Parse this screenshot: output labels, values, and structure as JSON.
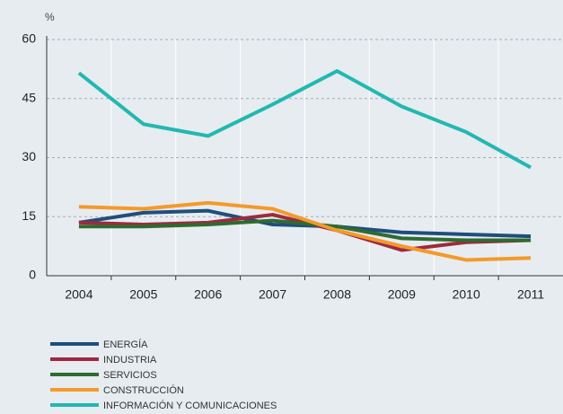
{
  "chart_data": {
    "type": "line",
    "y_label": "%",
    "categories": [
      "2004",
      "2005",
      "2006",
      "2007",
      "2008",
      "2009",
      "2010",
      "2011"
    ],
    "ylim": [
      0,
      60
    ],
    "yticks": [
      0,
      15,
      30,
      45,
      60
    ],
    "grid": true,
    "legend": "bottom-left",
    "series": [
      {
        "name": "ENERGÍA",
        "color": "#1f4e7c",
        "values": [
          13.5,
          16,
          16.5,
          13,
          12.5,
          11,
          10.5,
          10
        ]
      },
      {
        "name": "INDUSTRIA",
        "color": "#9e2a3e",
        "values": [
          13.5,
          13,
          13.5,
          15.5,
          11.5,
          6.5,
          8.5,
          9
        ]
      },
      {
        "name": "SERVICIOS",
        "color": "#2e6b30",
        "values": [
          12.5,
          12.5,
          13,
          14,
          12.5,
          9.5,
          9,
          9
        ]
      },
      {
        "name": "CONSTRUCCIÓN",
        "color": "#f39a2a",
        "values": [
          17.5,
          17,
          18.5,
          17,
          11.5,
          7.5,
          4,
          4.5
        ]
      },
      {
        "name": "INFORMACIÓN Y COMUNICACIONES",
        "color": "#22b8b0",
        "values": [
          51.5,
          38.5,
          35.5,
          43.5,
          52,
          43,
          36.5,
          27.5
        ]
      }
    ]
  }
}
